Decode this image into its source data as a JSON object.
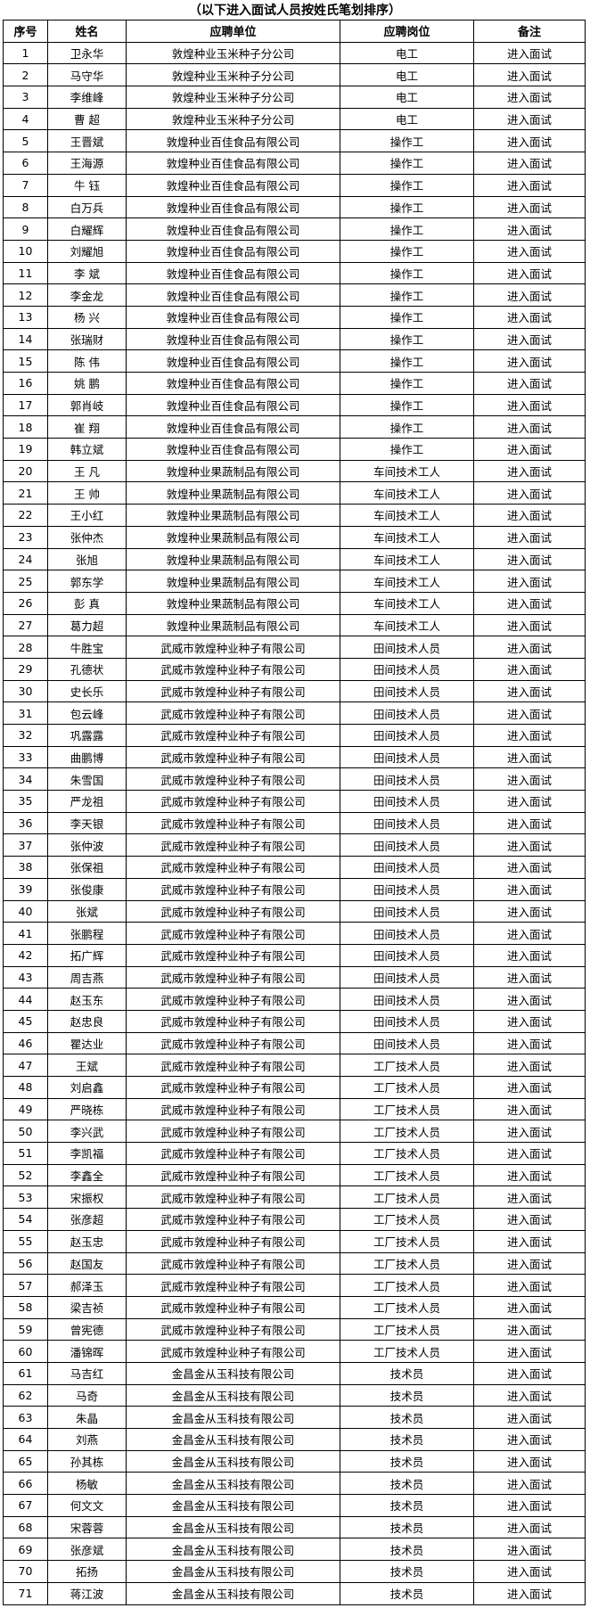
{
  "title": "（以下进入面试人员按姓氏笔划排序）",
  "headers": [
    "序号",
    "姓名",
    "应聘单位",
    "应聘岗位",
    "备注"
  ],
  "rows": [
    [
      "1",
      "卫永华",
      "敦煌种业玉米种子分公司",
      "电工",
      "进入面试"
    ],
    [
      "2",
      "马守华",
      "敦煌种业玉米种子分公司",
      "电工",
      "进入面试"
    ],
    [
      "3",
      "李维峰",
      "敦煌种业玉米种子分公司",
      "电工",
      "进入面试"
    ],
    [
      "4",
      "曹 超",
      "敦煌种业玉米种子分公司",
      "电工",
      "进入面试"
    ],
    [
      "5",
      "王晋斌",
      "敦煌种业百佳食品有限公司",
      "操作工",
      "进入面试"
    ],
    [
      "6",
      "王海源",
      "敦煌种业百佳食品有限公司",
      "操作工",
      "进入面试"
    ],
    [
      "7",
      "牛 钰",
      "敦煌种业百佳食品有限公司",
      "操作工",
      "进入面试"
    ],
    [
      "8",
      "白万兵",
      "敦煌种业百佳食品有限公司",
      "操作工",
      "进入面试"
    ],
    [
      "9",
      "白耀辉",
      "敦煌种业百佳食品有限公司",
      "操作工",
      "进入面试"
    ],
    [
      "10",
      "刘耀旭",
      "敦煌种业百佳食品有限公司",
      "操作工",
      "进入面试"
    ],
    [
      "11",
      "李 斌",
      "敦煌种业百佳食品有限公司",
      "操作工",
      "进入面试"
    ],
    [
      "12",
      "李金龙",
      "敦煌种业百佳食品有限公司",
      "操作工",
      "进入面试"
    ],
    [
      "13",
      "杨 兴",
      "敦煌种业百佳食品有限公司",
      "操作工",
      "进入面试"
    ],
    [
      "14",
      "张瑞财",
      "敦煌种业百佳食品有限公司",
      "操作工",
      "进入面试"
    ],
    [
      "15",
      "陈 伟",
      "敦煌种业百佳食品有限公司",
      "操作工",
      "进入面试"
    ],
    [
      "16",
      "姚 鹏",
      "敦煌种业百佳食品有限公司",
      "操作工",
      "进入面试"
    ],
    [
      "17",
      "郭肖岐",
      "敦煌种业百佳食品有限公司",
      "操作工",
      "进入面试"
    ],
    [
      "18",
      "崔 翔",
      "敦煌种业百佳食品有限公司",
      "操作工",
      "进入面试"
    ],
    [
      "19",
      "韩立斌",
      "敦煌种业百佳食品有限公司",
      "操作工",
      "进入面试"
    ],
    [
      "20",
      "王 凡",
      "敦煌种业果蔬制品有限公司",
      "车间技术工人",
      "进入面试"
    ],
    [
      "21",
      "王 帅",
      "敦煌种业果蔬制品有限公司",
      "车间技术工人",
      "进入面试"
    ],
    [
      "22",
      "王小红",
      "敦煌种业果蔬制品有限公司",
      "车间技术工人",
      "进入面试"
    ],
    [
      "23",
      "张仲杰",
      "敦煌种业果蔬制品有限公司",
      "车间技术工人",
      "进入面试"
    ],
    [
      "24",
      "张旭",
      "敦煌种业果蔬制品有限公司",
      "车间技术工人",
      "进入面试"
    ],
    [
      "25",
      "郭东学",
      "敦煌种业果蔬制品有限公司",
      "车间技术工人",
      "进入面试"
    ],
    [
      "26",
      "彭 真",
      "敦煌种业果蔬制品有限公司",
      "车间技术工人",
      "进入面试"
    ],
    [
      "27",
      "葛力超",
      "敦煌种业果蔬制品有限公司",
      "车间技术工人",
      "进入面试"
    ],
    [
      "28",
      "牛胜宝",
      "武威市敦煌种业种子有限公司",
      "田间技术人员",
      "进入面试"
    ],
    [
      "29",
      "孔德状",
      "武威市敦煌种业种子有限公司",
      "田间技术人员",
      "进入面试"
    ],
    [
      "30",
      "史长乐",
      "武威市敦煌种业种子有限公司",
      "田间技术人员",
      "进入面试"
    ],
    [
      "31",
      "包云峰",
      "武威市敦煌种业种子有限公司",
      "田间技术人员",
      "进入面试"
    ],
    [
      "32",
      "巩露露",
      "武威市敦煌种业种子有限公司",
      "田间技术人员",
      "进入面试"
    ],
    [
      "33",
      "曲鹏博",
      "武威市敦煌种业种子有限公司",
      "田间技术人员",
      "进入面试"
    ],
    [
      "34",
      "朱雪国",
      "武威市敦煌种业种子有限公司",
      "田间技术人员",
      "进入面试"
    ],
    [
      "35",
      "严龙祖",
      "武威市敦煌种业种子有限公司",
      "田间技术人员",
      "进入面试"
    ],
    [
      "36",
      "李天银",
      "武威市敦煌种业种子有限公司",
      "田间技术人员",
      "进入面试"
    ],
    [
      "37",
      "张仲波",
      "武威市敦煌种业种子有限公司",
      "田间技术人员",
      "进入面试"
    ],
    [
      "38",
      "张保祖",
      "武威市敦煌种业种子有限公司",
      "田间技术人员",
      "进入面试"
    ],
    [
      "39",
      "张俊康",
      "武威市敦煌种业种子有限公司",
      "田间技术人员",
      "进入面试"
    ],
    [
      "40",
      "张斌",
      "武威市敦煌种业种子有限公司",
      "田间技术人员",
      "进入面试"
    ],
    [
      "41",
      "张鹏程",
      "武威市敦煌种业种子有限公司",
      "田间技术人员",
      "进入面试"
    ],
    [
      "42",
      "拓广辉",
      "武威市敦煌种业种子有限公司",
      "田间技术人员",
      "进入面试"
    ],
    [
      "43",
      "周吉燕",
      "武威市敦煌种业种子有限公司",
      "田间技术人员",
      "进入面试"
    ],
    [
      "44",
      "赵玉东",
      "武威市敦煌种业种子有限公司",
      "田间技术人员",
      "进入面试"
    ],
    [
      "45",
      "赵忠良",
      "武威市敦煌种业种子有限公司",
      "田间技术人员",
      "进入面试"
    ],
    [
      "46",
      "瞿达业",
      "武威市敦煌种业种子有限公司",
      "田间技术人员",
      "进入面试"
    ],
    [
      "47",
      "王斌",
      "武威市敦煌种业种子有限公司",
      "工厂技术人员",
      "进入面试"
    ],
    [
      "48",
      "刘启鑫",
      "武威市敦煌种业种子有限公司",
      "工厂技术人员",
      "进入面试"
    ],
    [
      "49",
      "严晓栋",
      "武威市敦煌种业种子有限公司",
      "工厂技术人员",
      "进入面试"
    ],
    [
      "50",
      "李兴武",
      "武威市敦煌种业种子有限公司",
      "工厂技术人员",
      "进入面试"
    ],
    [
      "51",
      "李凯福",
      "武威市敦煌种业种子有限公司",
      "工厂技术人员",
      "进入面试"
    ],
    [
      "52",
      "李鑫全",
      "武威市敦煌种业种子有限公司",
      "工厂技术人员",
      "进入面试"
    ],
    [
      "53",
      "宋振权",
      "武威市敦煌种业种子有限公司",
      "工厂技术人员",
      "进入面试"
    ],
    [
      "54",
      "张彦超",
      "武威市敦煌种业种子有限公司",
      "工厂技术人员",
      "进入面试"
    ],
    [
      "55",
      "赵玉忠",
      "武威市敦煌种业种子有限公司",
      "工厂技术人员",
      "进入面试"
    ],
    [
      "56",
      "赵国友",
      "武威市敦煌种业种子有限公司",
      "工厂技术人员",
      "进入面试"
    ],
    [
      "57",
      "郝泽玉",
      "武威市敦煌种业种子有限公司",
      "工厂技术人员",
      "进入面试"
    ],
    [
      "58",
      "梁吉祯",
      "武威市敦煌种业种子有限公司",
      "工厂技术人员",
      "进入面试"
    ],
    [
      "59",
      "曾宪德",
      "武威市敦煌种业种子有限公司",
      "工厂技术人员",
      "进入面试"
    ],
    [
      "60",
      "潘锦晖",
      "武威市敦煌种业种子有限公司",
      "工厂技术人员",
      "进入面试"
    ],
    [
      "61",
      "马吉红",
      "金昌金从玉科技有限公司",
      "技术员",
      "进入面试"
    ],
    [
      "62",
      "马奇",
      "金昌金从玉科技有限公司",
      "技术员",
      "进入面试"
    ],
    [
      "63",
      "朱晶",
      "金昌金从玉科技有限公司",
      "技术员",
      "进入面试"
    ],
    [
      "64",
      "刘燕",
      "金昌金从玉科技有限公司",
      "技术员",
      "进入面试"
    ],
    [
      "65",
      "孙其栋",
      "金昌金从玉科技有限公司",
      "技术员",
      "进入面试"
    ],
    [
      "66",
      "杨敏",
      "金昌金从玉科技有限公司",
      "技术员",
      "进入面试"
    ],
    [
      "67",
      "何文文",
      "金昌金从玉科技有限公司",
      "技术员",
      "进入面试"
    ],
    [
      "68",
      "宋蓉蓉",
      "金昌金从玉科技有限公司",
      "技术员",
      "进入面试"
    ],
    [
      "69",
      "张彦斌",
      "金昌金从玉科技有限公司",
      "技术员",
      "进入面试"
    ],
    [
      "70",
      "拓扬",
      "金昌金从玉科技有限公司",
      "技术员",
      "进入面试"
    ],
    [
      "71",
      "蒋江波",
      "金昌金从玉科技有限公司",
      "技术员",
      "进入面试"
    ]
  ]
}
